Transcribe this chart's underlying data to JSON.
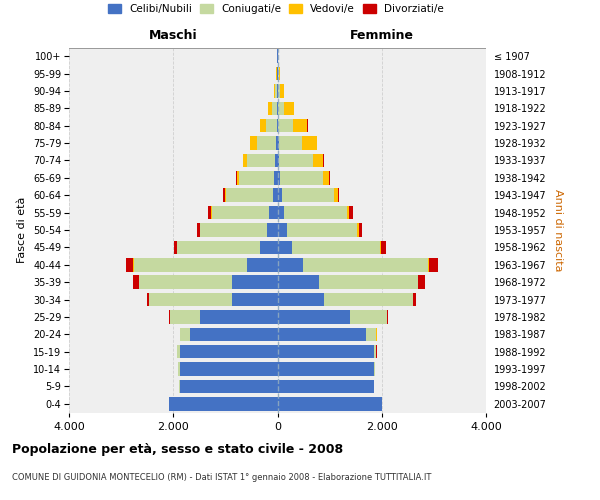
{
  "age_groups": [
    "0-4",
    "5-9",
    "10-14",
    "15-19",
    "20-24",
    "25-29",
    "30-34",
    "35-39",
    "40-44",
    "45-49",
    "50-54",
    "55-59",
    "60-64",
    "65-69",
    "70-74",
    "75-79",
    "80-84",
    "85-89",
    "90-94",
    "95-99",
    "100+"
  ],
  "birth_years": [
    "2003-2007",
    "1998-2002",
    "1993-1997",
    "1988-1992",
    "1983-1987",
    "1978-1982",
    "1973-1977",
    "1968-1972",
    "1963-1967",
    "1958-1962",
    "1953-1957",
    "1948-1952",
    "1943-1947",
    "1938-1942",
    "1933-1937",
    "1928-1932",
    "1923-1927",
    "1918-1922",
    "1913-1917",
    "1908-1912",
    "≤ 1907"
  ],
  "males": {
    "celibi": [
      2080,
      1880,
      1880,
      1880,
      1680,
      1480,
      880,
      870,
      580,
      340,
      200,
      160,
      95,
      60,
      45,
      25,
      18,
      8,
      5,
      3,
      2
    ],
    "coniugati": [
      4,
      9,
      28,
      45,
      190,
      580,
      1580,
      1780,
      2180,
      1580,
      1280,
      1090,
      890,
      670,
      540,
      370,
      195,
      88,
      38,
      15,
      5
    ],
    "vedovi": [
      2,
      2,
      2,
      2,
      4,
      4,
      2,
      2,
      4,
      9,
      14,
      18,
      28,
      48,
      78,
      128,
      128,
      78,
      28,
      10,
      2
    ],
    "divorziati": [
      1,
      1,
      1,
      2,
      4,
      18,
      48,
      118,
      148,
      48,
      58,
      58,
      24,
      11,
      7,
      4,
      2,
      2,
      0,
      0,
      0
    ]
  },
  "females": {
    "nubili": [
      1998,
      1848,
      1848,
      1848,
      1698,
      1398,
      898,
      798,
      498,
      278,
      178,
      128,
      78,
      48,
      35,
      25,
      18,
      8,
      5,
      3,
      2
    ],
    "coniugate": [
      4,
      9,
      23,
      48,
      198,
      698,
      1698,
      1898,
      2398,
      1698,
      1348,
      1198,
      998,
      818,
      648,
      448,
      278,
      118,
      48,
      18,
      5
    ],
    "vedove": [
      2,
      2,
      2,
      2,
      4,
      4,
      4,
      4,
      9,
      18,
      28,
      48,
      78,
      128,
      198,
      278,
      278,
      198,
      78,
      28,
      5
    ],
    "divorziate": [
      1,
      1,
      1,
      2,
      4,
      18,
      58,
      128,
      168,
      78,
      68,
      68,
      28,
      14,
      11,
      7,
      4,
      2,
      2,
      0,
      0
    ]
  },
  "colors": {
    "celibi": "#4472c4",
    "coniugati": "#c5d9a0",
    "vedovi": "#ffc000",
    "divorziati": "#cc0000"
  },
  "xlim": 4000,
  "title": "Popolazione per età, sesso e stato civile - 2008",
  "subtitle": "COMUNE DI GUIDONIA MONTECELIO (RM) - Dati ISTAT 1° gennaio 2008 - Elaborazione TUTTITALIA.IT",
  "ylabel_left": "Fasce di età",
  "ylabel_right": "Anni di nascita",
  "xlabel_left": "Maschi",
  "xlabel_right": "Femmine",
  "legend_labels": [
    "Celibi/Nubili",
    "Coniugati/e",
    "Vedovi/e",
    "Divorziati/e"
  ],
  "background_color": "#ffffff",
  "plot_bg_color": "#efefef",
  "grid_color": "#cccccc",
  "bar_height": 0.78
}
